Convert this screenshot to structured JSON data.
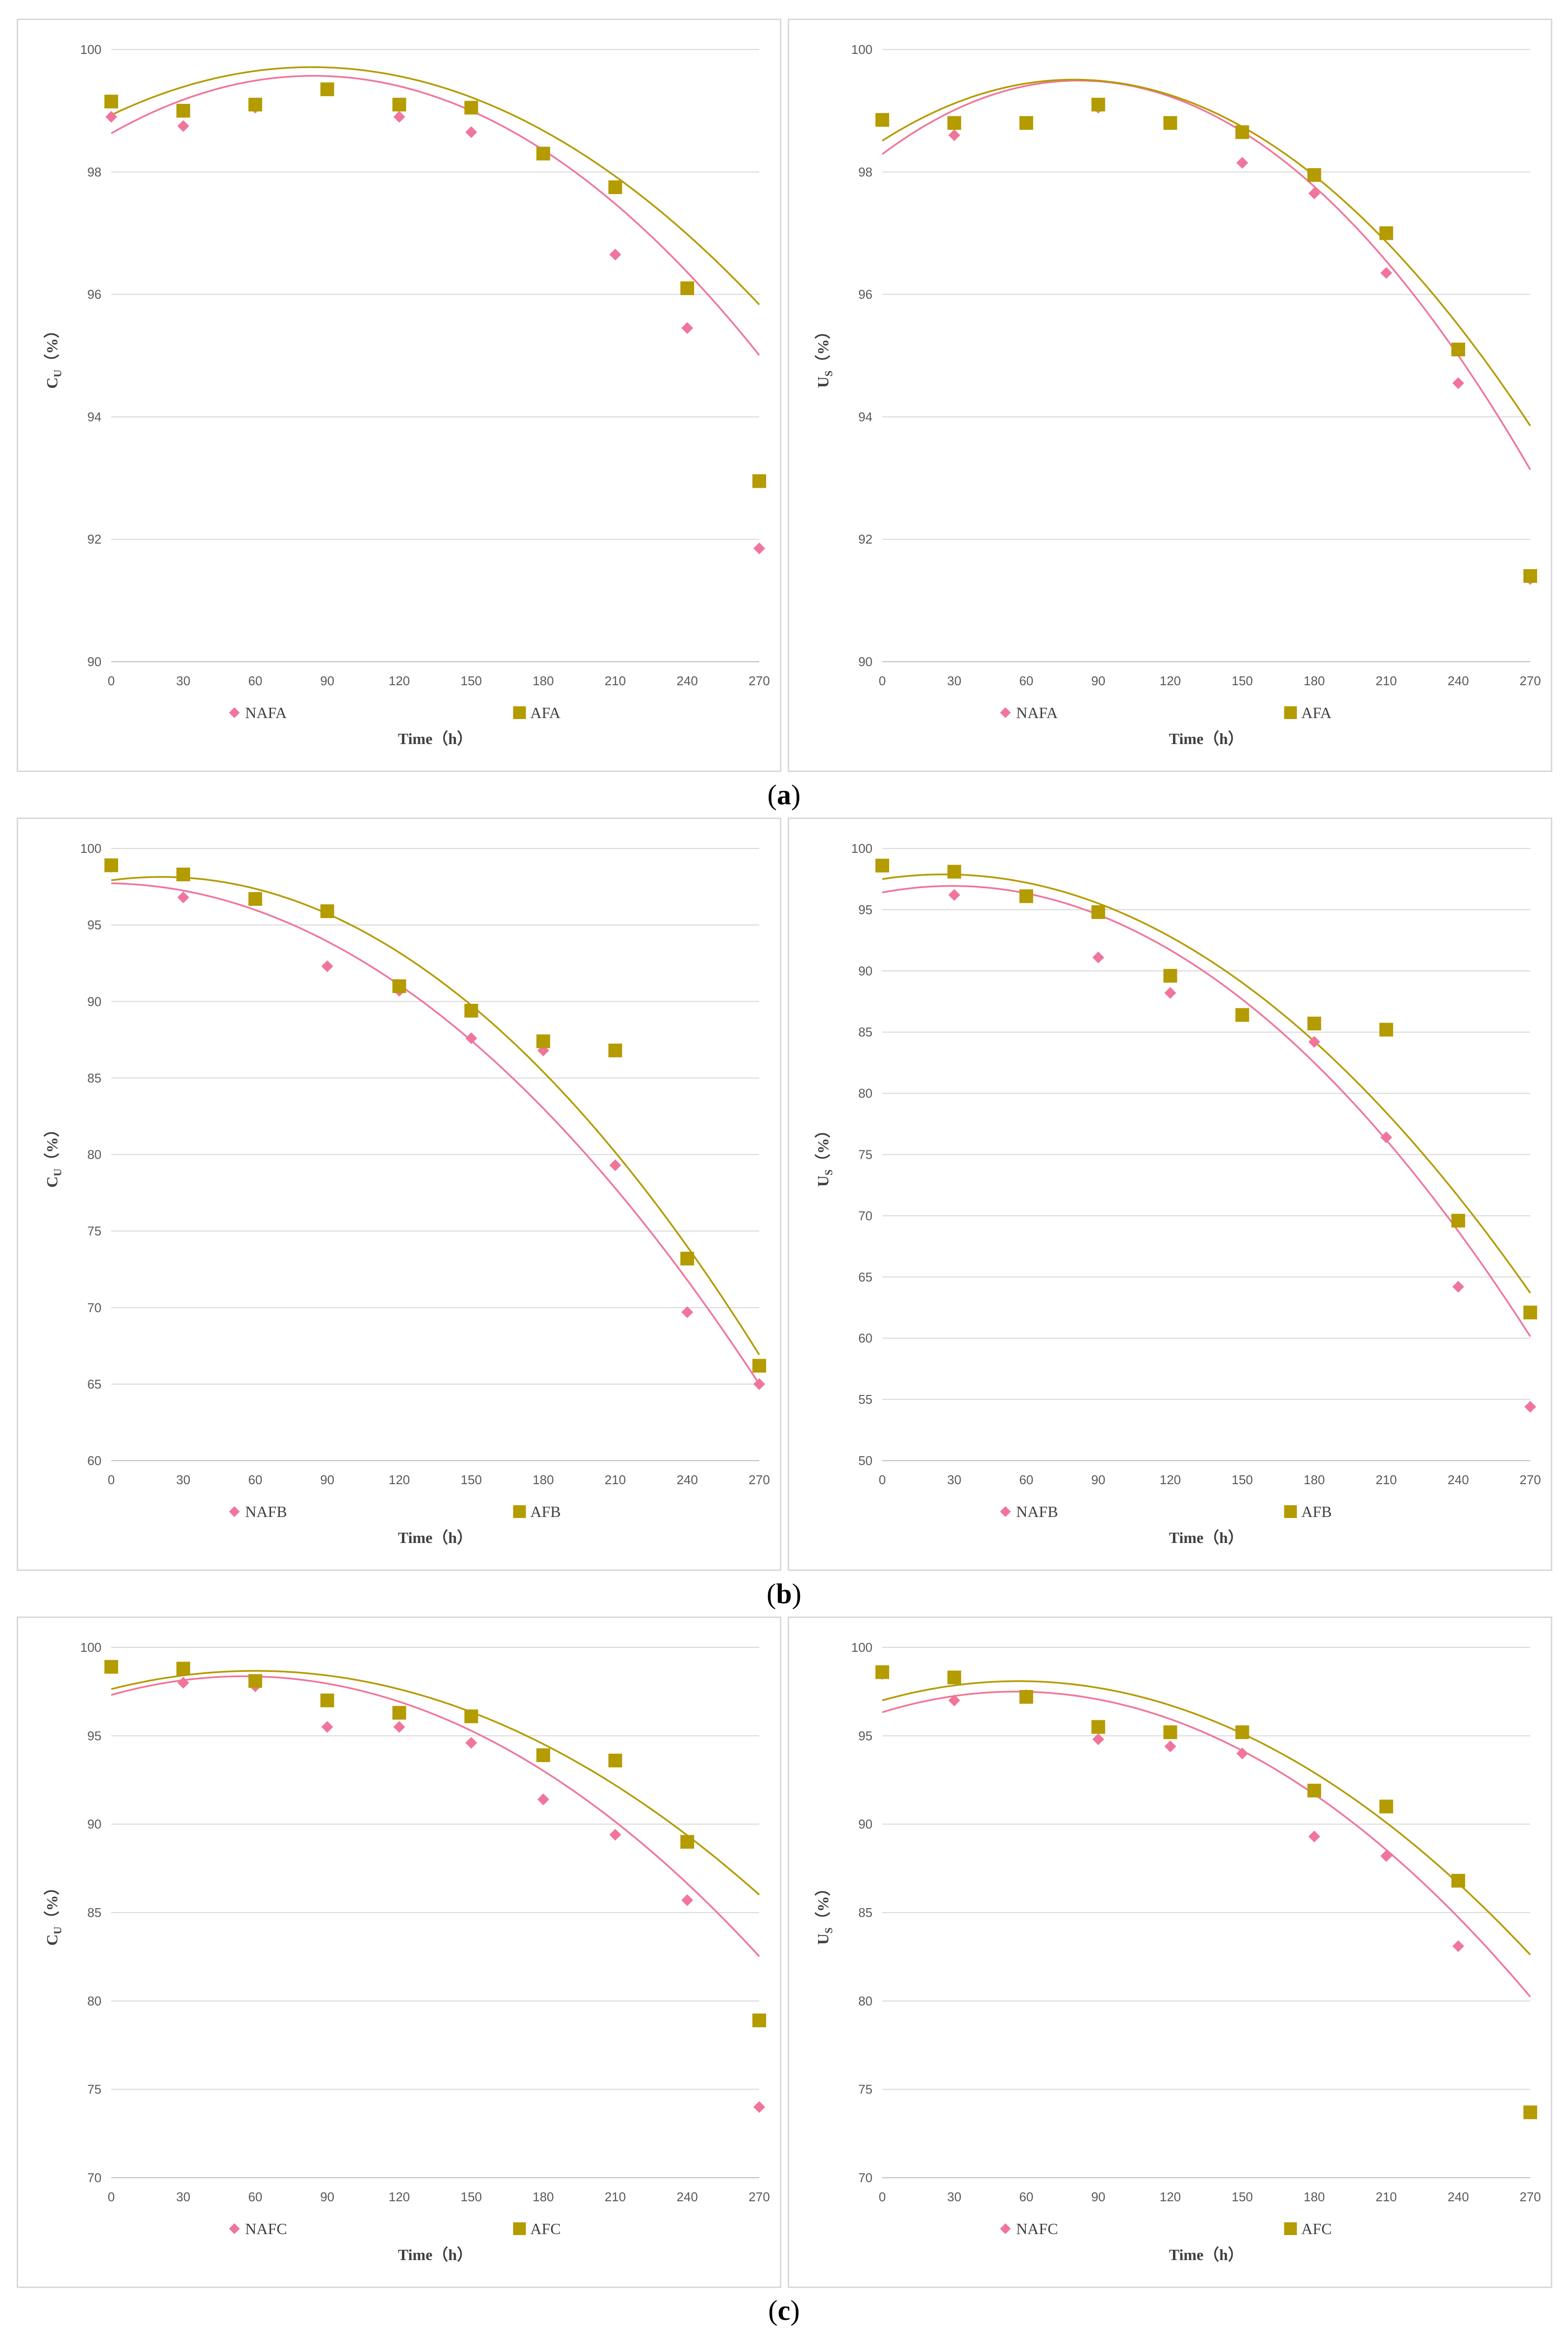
{
  "colors": {
    "nafa": "#F0759A",
    "afa": "#B49B00",
    "grid": "#D9D9D9",
    "axis": "#BFBFBF",
    "tick": "#595959"
  },
  "captions": [
    {
      "open": "(",
      "letter": "a",
      "close": ")"
    },
    {
      "open": "(",
      "letter": "b",
      "close": ")"
    },
    {
      "open": "(",
      "letter": "c",
      "close": ")"
    }
  ],
  "chart_data": [
    {
      "type": "scatter",
      "xlabel": "Time（h）",
      "ylabel": "CU（%）",
      "ylabel_main": "C",
      "ylabel_sub": "U",
      "ylabel_unit": "（%）",
      "x": [
        0,
        30,
        60,
        90,
        120,
        150,
        180,
        210,
        240,
        270
      ],
      "xticks": [
        "0",
        "30",
        "60",
        "90",
        "120",
        "150",
        "180",
        "210",
        "240",
        "270"
      ],
      "ylim": [
        90,
        100
      ],
      "yticks": [
        "90",
        "92",
        "94",
        "96",
        "98",
        "100"
      ],
      "series": [
        {
          "name": "NAFA",
          "marker": "diamond",
          "values": [
            98.9,
            98.75,
            99.05,
            99.35,
            98.9,
            98.65,
            98.3,
            96.65,
            95.45,
            91.85
          ],
          "trend": {
            "type": "poly2",
            "a": -0.0001323,
            "b": 0.0223,
            "c": 98.63
          }
        },
        {
          "name": "AFA",
          "marker": "square",
          "values": [
            99.15,
            99.0,
            99.1,
            99.35,
            99.1,
            99.05,
            98.3,
            97.75,
            96.1,
            92.95
          ],
          "trend": {
            "type": "poly2",
            "a": -0.0001117,
            "b": 0.01869,
            "c": 98.93
          }
        }
      ]
    },
    {
      "type": "scatter",
      "xlabel": "Time（h）",
      "ylabel": "US（%）",
      "ylabel_main": "U",
      "ylabel_sub": "S",
      "ylabel_unit": "（%）",
      "x": [
        0,
        30,
        60,
        90,
        120,
        150,
        180,
        210,
        240,
        270
      ],
      "xticks": [
        "0",
        "30",
        "60",
        "90",
        "120",
        "150",
        "180",
        "210",
        "240",
        "270"
      ],
      "ylim": [
        90,
        100
      ],
      "yticks": [
        "90",
        "92",
        "94",
        "96",
        "98",
        "100"
      ],
      "series": [
        {
          "name": "NAFA",
          "marker": "diamond",
          "values": [
            98.85,
            98.6,
            98.8,
            99.05,
            98.8,
            98.15,
            97.65,
            96.35,
            94.55,
            91.35
          ],
          "trend": {
            "type": "poly2",
            "a": -0.0001795,
            "b": 0.02938,
            "c": 98.29
          }
        },
        {
          "name": "AFA",
          "marker": "square",
          "values": [
            98.85,
            98.8,
            98.8,
            99.1,
            98.8,
            98.65,
            97.95,
            97.0,
            95.1,
            91.4
          ],
          "trend": {
            "type": "poly2",
            "a": -0.0001564,
            "b": 0.02498,
            "c": 98.51
          }
        }
      ]
    },
    {
      "type": "scatter",
      "xlabel": "Time（h）",
      "ylabel": "CU（%）",
      "ylabel_main": "C",
      "ylabel_sub": "U",
      "ylabel_unit": "（%）",
      "x": [
        0,
        30,
        60,
        90,
        120,
        150,
        180,
        210,
        240,
        270
      ],
      "xticks": [
        "0",
        "30",
        "60",
        "90",
        "120",
        "150",
        "180",
        "210",
        "240",
        "270"
      ],
      "ylim": [
        60,
        100
      ],
      "yticks": [
        "60",
        "65",
        "70",
        "75",
        "80",
        "85",
        "90",
        "95",
        "100"
      ],
      "series": [
        {
          "name": "NAFB",
          "marker": "diamond",
          "values": [
            98.8,
            96.8,
            96.7,
            92.3,
            90.7,
            87.6,
            86.8,
            79.3,
            69.7,
            65.0
          ],
          "trend": {
            "type": "poly2",
            "a": -0.000439,
            "b": -0.00265,
            "c": 97.72
          }
        },
        {
          "name": "AFB",
          "marker": "square",
          "values": [
            98.9,
            98.3,
            96.7,
            95.9,
            91.0,
            89.4,
            87.4,
            86.8,
            73.2,
            66.2
          ],
          "trend": {
            "type": "poly2",
            "a": -0.000503,
            "b": 0.021,
            "c": 97.92
          }
        }
      ]
    },
    {
      "type": "scatter",
      "xlabel": "Time（h）",
      "ylabel": "US（%）",
      "ylabel_main": "U",
      "ylabel_sub": "S",
      "ylabel_unit": "（%）",
      "x": [
        0,
        30,
        60,
        90,
        120,
        150,
        180,
        210,
        240,
        270
      ],
      "xticks": [
        "0",
        "30",
        "60",
        "90",
        "120",
        "150",
        "180",
        "210",
        "240",
        "270"
      ],
      "ylim": [
        50,
        100
      ],
      "yticks": [
        "50",
        "55",
        "60",
        "65",
        "70",
        "75",
        "80",
        "85",
        "90",
        "95",
        "100"
      ],
      "series": [
        {
          "name": "NAFB",
          "marker": "diamond",
          "values": [
            98.5,
            96.2,
            96.0,
            91.1,
            88.2,
            86.3,
            84.2,
            76.4,
            64.2,
            54.4
          ],
          "trend": {
            "type": "poly2",
            "a": -0.000634,
            "b": 0.0369,
            "c": 96.4
          }
        },
        {
          "name": "AFB",
          "marker": "square",
          "values": [
            98.6,
            98.1,
            96.1,
            94.8,
            89.6,
            86.4,
            85.7,
            85.2,
            69.6,
            62.1
          ],
          "trend": {
            "type": "poly2",
            "a": -0.000573,
            "b": 0.0295,
            "c": 97.5
          }
        }
      ]
    },
    {
      "type": "scatter",
      "xlabel": "Time（h）",
      "ylabel": "CU（%）",
      "ylabel_main": "C",
      "ylabel_sub": "U",
      "ylabel_unit": "（%）",
      "x": [
        0,
        30,
        60,
        90,
        120,
        150,
        180,
        210,
        240,
        270
      ],
      "xticks": [
        "0",
        "30",
        "60",
        "90",
        "120",
        "150",
        "180",
        "210",
        "240",
        "270"
      ],
      "ylim": [
        70,
        100
      ],
      "yticks": [
        "70",
        "75",
        "80",
        "85",
        "90",
        "95",
        "100"
      ],
      "series": [
        {
          "name": "NAFC",
          "marker": "diamond",
          "values": [
            98.9,
            98.0,
            97.8,
            95.5,
            95.5,
            94.6,
            91.4,
            89.4,
            85.7,
            74.0
          ],
          "trend": {
            "type": "poly2",
            "a": -0.000344,
            "b": 0.0381,
            "c": 97.31
          }
        },
        {
          "name": "AFC",
          "marker": "square",
          "values": [
            98.9,
            98.8,
            98.1,
            97.0,
            96.3,
            96.1,
            93.9,
            93.6,
            89.0,
            78.9
          ],
          "trend": {
            "type": "poly2",
            "a": -0.000287,
            "b": 0.0344,
            "c": 97.64
          }
        }
      ]
    },
    {
      "type": "scatter",
      "xlabel": "Time（h）",
      "ylabel": "US（%）",
      "ylabel_main": "U",
      "ylabel_sub": "S",
      "ylabel_unit": "（%）",
      "x": [
        0,
        30,
        60,
        90,
        120,
        150,
        180,
        210,
        240,
        270
      ],
      "xticks": [
        "0",
        "30",
        "60",
        "90",
        "120",
        "150",
        "180",
        "210",
        "240",
        "270"
      ],
      "ylim": [
        70,
        100
      ],
      "yticks": [
        "70",
        "75",
        "80",
        "85",
        "90",
        "95",
        "100"
      ],
      "series": [
        {
          "name": "NAFC",
          "marker": "diamond",
          "values": [
            98.5,
            97.0,
            97.3,
            94.8,
            94.4,
            94.0,
            89.3,
            88.2,
            83.1,
            73.7
          ],
          "trend": {
            "type": "poly2",
            "a": -0.000376,
            "b": 0.0419,
            "c": 96.33
          }
        },
        {
          "name": "AFC",
          "marker": "square",
          "values": [
            98.6,
            98.3,
            97.2,
            95.5,
            95.2,
            95.2,
            91.9,
            91.0,
            86.8,
            73.7
          ],
          "trend": {
            "type": "poly2",
            "a": -0.00034,
            "b": 0.0385,
            "c": 97.0
          }
        }
      ]
    }
  ]
}
